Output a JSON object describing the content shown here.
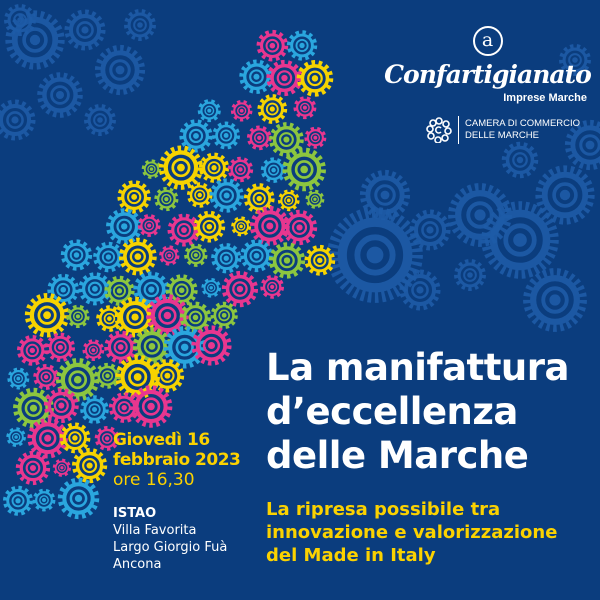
{
  "colors": {
    "background": "#0b3d7e",
    "title": "#ffffff",
    "accent": "#fbd200",
    "gear_pink": "#e8368f",
    "gear_yellow": "#f6d300",
    "gear_green": "#8cc63f",
    "gear_cyan": "#2aa6de",
    "gear_blue": "#1e5ca8"
  },
  "logos": {
    "confartigianato": {
      "symbol": "a",
      "name": "Confartigianato",
      "sub": "Imprese Marche"
    },
    "camera": {
      "line1": "CAMERA DI COMMERCIO",
      "line2": "DELLE MARCHE"
    }
  },
  "title": {
    "line1": "La manifattura",
    "line2": "d’eccellenza",
    "line3": "delle Marche"
  },
  "subtitle": {
    "line1": "La ripresa possibile tra",
    "line2": "innovazione e valorizzazione",
    "line3": "del Made in Italy"
  },
  "event": {
    "day": "Giovedì 16",
    "date": "febbraio 2023",
    "time": "ore 16,30"
  },
  "venue": {
    "name": "ISTAO",
    "line1": "Villa Favorita",
    "line2": "Largo Giorgio Fuà",
    "line3": "Ancona"
  },
  "decoration": "gear-arrow"
}
